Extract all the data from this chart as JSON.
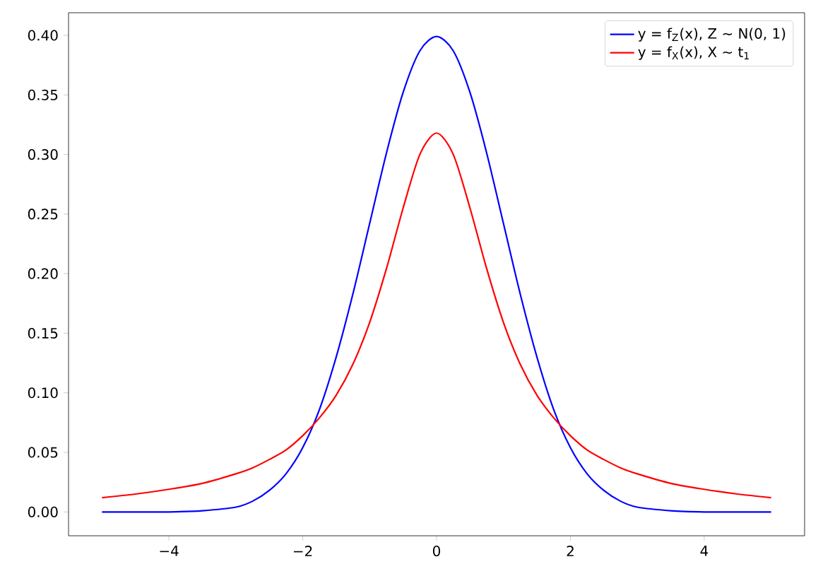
{
  "chart_data": {
    "type": "line",
    "x": [
      -5,
      -4.5,
      -4,
      -3.5,
      -3,
      -2.75,
      -2.5,
      -2.25,
      -2,
      -1.75,
      -1.5,
      -1.25,
      -1,
      -0.75,
      -0.5,
      -0.25,
      0,
      0.25,
      0.5,
      0.75,
      1,
      1.25,
      1.5,
      1.75,
      2,
      2.25,
      2.5,
      2.75,
      3,
      3.5,
      4,
      4.5,
      5
    ],
    "series": [
      {
        "name": "y = f$_{Z}$(x), Z ∼ N(0, 1)",
        "color": "#0000ff",
        "values": [
          0.0,
          0.0,
          0.0,
          0.001,
          0.004,
          0.009,
          0.018,
          0.032,
          0.054,
          0.086,
          0.13,
          0.183,
          0.242,
          0.301,
          0.352,
          0.387,
          0.399,
          0.387,
          0.352,
          0.301,
          0.242,
          0.183,
          0.13,
          0.086,
          0.054,
          0.032,
          0.018,
          0.009,
          0.004,
          0.001,
          0.0,
          0.0,
          0.0
        ]
      },
      {
        "name": "y = f$_{X}$(x), X ∼ t$_{1}$",
        "color": "#ff0000",
        "values": [
          0.012,
          0.015,
          0.019,
          0.024,
          0.032,
          0.037,
          0.044,
          0.052,
          0.064,
          0.079,
          0.098,
          0.124,
          0.159,
          0.204,
          0.255,
          0.3,
          0.318,
          0.3,
          0.255,
          0.204,
          0.159,
          0.124,
          0.098,
          0.079,
          0.064,
          0.052,
          0.044,
          0.037,
          0.032,
          0.024,
          0.019,
          0.015,
          0.012
        ]
      }
    ],
    "xlim": [
      -5.5,
      5.5
    ],
    "ylim": [
      -0.02,
      0.419
    ],
    "xticks": [
      {
        "value": -4,
        "label": "−4"
      },
      {
        "value": -2,
        "label": "−2"
      },
      0,
      2,
      4
    ],
    "yticks": [
      {
        "value": 0,
        "label": "0.00"
      },
      {
        "value": 0.05,
        "label": "0.05"
      },
      {
        "value": 0.1,
        "label": "0.10"
      },
      {
        "value": 0.15,
        "label": "0.15"
      },
      {
        "value": 0.2,
        "label": "0.20"
      },
      {
        "value": 0.25,
        "label": "0.25"
      },
      {
        "value": 0.3,
        "label": "0.30"
      },
      {
        "value": 0.35,
        "label": "0.35"
      },
      {
        "value": 0.4,
        "label": "0.40"
      }
    ],
    "legend": "top right"
  }
}
